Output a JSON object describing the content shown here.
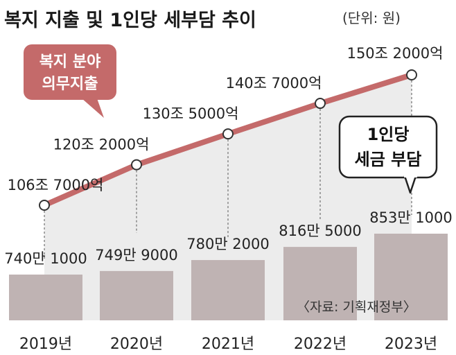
{
  "title": "복지 지출 및 1인당 세부담 추이",
  "unit": "(단위: 원)",
  "source": "〈자료: 기획재정부〉",
  "colors": {
    "line": "#c46a6a",
    "bar": "#bfb3b3",
    "area": "#ececec",
    "callout": "#c46a6a"
  },
  "chart_data": {
    "type": "bar+line",
    "categories": [
      "2019년",
      "2020년",
      "2021년",
      "2022년",
      "2023년"
    ],
    "series": [
      {
        "name": "복지 분야 의무지출",
        "type": "line",
        "values": [
          106.7,
          120.2,
          130.5,
          140.7,
          150.2
        ],
        "unit": "조원",
        "labels": [
          "106조 7000억",
          "120조 2000억",
          "130조 5000억",
          "140조 7000억",
          "150조 2000억"
        ]
      },
      {
        "name": "1인당 세금 부담",
        "type": "bar",
        "values": [
          7401000,
          7499000,
          7802000,
          8165000,
          8531000
        ],
        "unit": "원",
        "labels": [
          "740만 1000",
          "749만 9000",
          "780만 2000",
          "816만 5000",
          "853만 1000"
        ]
      }
    ],
    "callouts": {
      "line": [
        "복지 분야",
        "의무지출"
      ],
      "bar": [
        "1인당",
        "세금 부담"
      ]
    },
    "legend": "callouts"
  }
}
